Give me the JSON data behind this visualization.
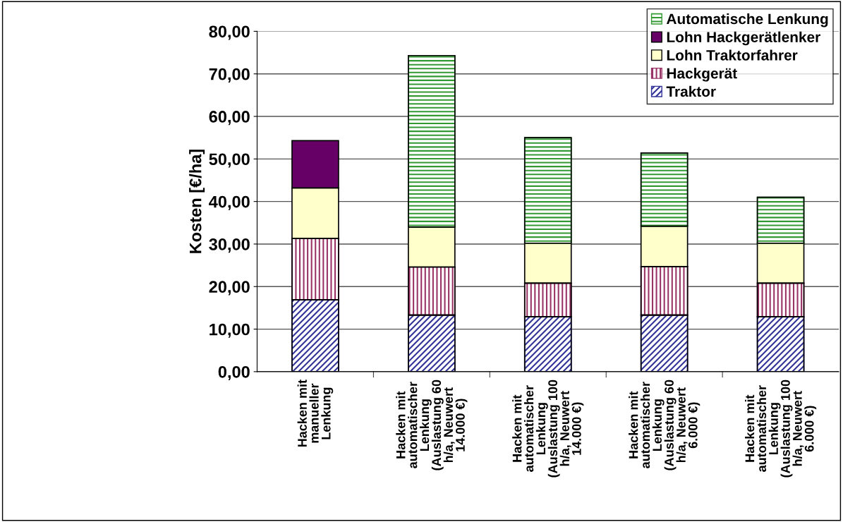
{
  "chart_data": {
    "type": "bar",
    "stacked": true,
    "ylabel": "Kosten [€/ha]",
    "categories": [
      "Hacken mit\nmanueller\nLenkung",
      "Hacken mit\nautomatischer\nLenkung\n(Auslastung 60\nh/a, Neuwert\n14.000 €)",
      "Hacken mit\nautomatischer\nLenkung\n(Auslastung 100\nh/a, Neuwert\n14.000 €)",
      "Hacken mit\nautomatischer\nLenkung\n(Auslastung 60\nh/a, Neuwert\n6.000 €)",
      "Hacken mit\nautomatischer\nLenkung\n(Auslastung 100\nh/a, Neuwert\n6.000 €)"
    ],
    "series": [
      {
        "name": "Traktor",
        "color": "#333399",
        "values": [
          16.9,
          13.3,
          12.9,
          13.3,
          12.9
        ]
      },
      {
        "name": "Hackgerät",
        "color": "#993366",
        "values": [
          14.4,
          11.3,
          7.9,
          11.4,
          7.9
        ]
      },
      {
        "name": "Lohn Traktorfahrer",
        "color": "#ffffcc",
        "values": [
          11.9,
          9.4,
          9.4,
          9.5,
          9.4
        ]
      },
      {
        "name": "Lohn Hackgerätlenker",
        "color": "#660066",
        "values": [
          11.1,
          null,
          null,
          null,
          null
        ]
      },
      {
        "name": "Automatische Lenkung",
        "color": "#339933",
        "values": [
          null,
          40.3,
          24.8,
          17.2,
          10.8
        ]
      }
    ],
    "ylim": [
      0,
      80
    ],
    "yticks": [
      {
        "value": 0,
        "label": "0,00"
      },
      {
        "value": 10,
        "label": "10,00"
      },
      {
        "value": 20,
        "label": "20,00"
      },
      {
        "value": 30,
        "label": "30,00"
      },
      {
        "value": 40,
        "label": "40,00"
      },
      {
        "value": 50,
        "label": "50,00"
      },
      {
        "value": 60,
        "label": "60,00"
      },
      {
        "value": 70,
        "label": "70,00"
      },
      {
        "value": 80,
        "label": "80,00"
      }
    ],
    "grid": "y",
    "legend": "top right"
  }
}
